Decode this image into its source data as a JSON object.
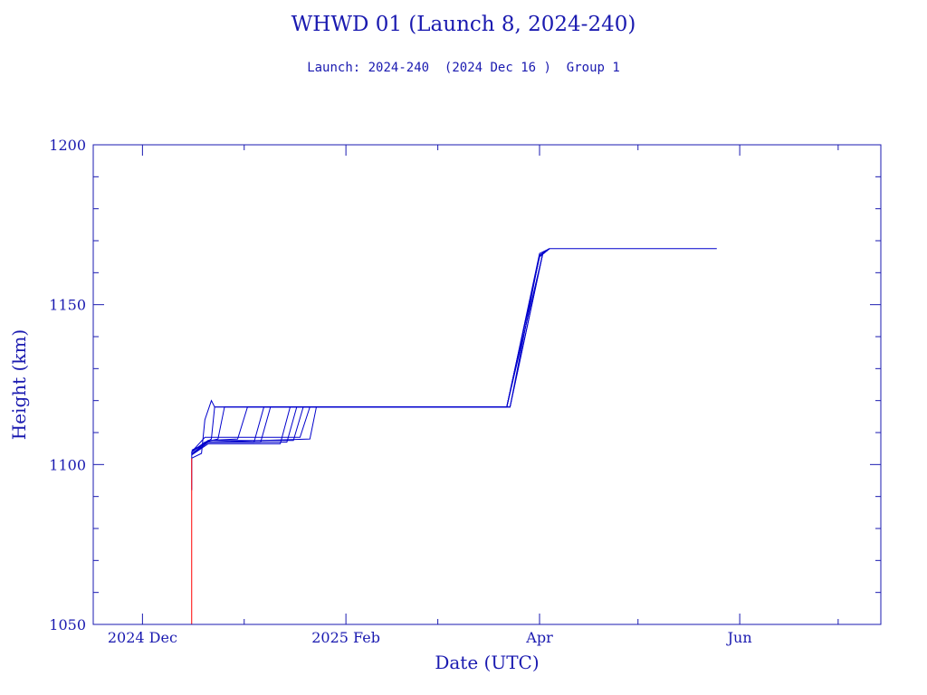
{
  "chart_data": {
    "type": "line",
    "title": "WHWD 01 (Launch 8, 2024-240)",
    "subtitle": "Launch: 2024-240  (2024 Dec 16 )  Group 1",
    "xlabel": "Date (UTC)",
    "ylabel": "Height (km)",
    "xlim": [
      "2024-11-16",
      "2025-07-14"
    ],
    "ylim": [
      1050,
      1200
    ],
    "y_ticks": [
      1050,
      1100,
      1150,
      1200
    ],
    "x_ticks": [
      {
        "date": "2024-12-01",
        "label": "2024 Dec"
      },
      {
        "date": "2025-02-01",
        "label": "2025 Feb"
      },
      {
        "date": "2025-04-01",
        "label": "Apr"
      },
      {
        "date": "2025-06-01",
        "label": "Jun"
      }
    ],
    "grid": false,
    "colors": {
      "axis": "#1a1ab0",
      "series": "#0000cc",
      "launch_marker": "#ff0000"
    },
    "launch_marker": {
      "date": "2024-12-16",
      "from": 1050,
      "to": 1102
    },
    "series": [
      {
        "points": [
          [
            "2024-12-16",
            1092
          ],
          [
            "2024-12-16",
            1104
          ],
          [
            "2024-12-19",
            1106
          ],
          [
            "2024-12-22",
            1108
          ],
          [
            "2024-12-23",
            1118
          ],
          [
            "2025-03-22",
            1118
          ],
          [
            "2025-04-01",
            1165
          ],
          [
            "2025-04-04",
            1167.5
          ],
          [
            "2025-05-25",
            1167.5
          ]
        ]
      },
      {
        "points": [
          [
            "2024-12-16",
            1103
          ],
          [
            "2024-12-20",
            1107
          ],
          [
            "2024-12-24",
            1108
          ],
          [
            "2024-12-26",
            1118
          ],
          [
            "2025-02-27",
            1118
          ],
          [
            "2025-03-22",
            1118
          ],
          [
            "2025-04-01",
            1166
          ],
          [
            "2025-04-04",
            1167.5
          ]
        ]
      },
      {
        "points": [
          [
            "2024-12-16",
            1104
          ],
          [
            "2024-12-21",
            1107.5
          ],
          [
            "2024-12-30",
            1108
          ],
          [
            "2025-01-02",
            1118
          ],
          [
            "2025-03-22",
            1118
          ],
          [
            "2025-04-01",
            1165.5
          ],
          [
            "2025-04-04",
            1167.5
          ]
        ]
      },
      {
        "points": [
          [
            "2024-12-16",
            1103
          ],
          [
            "2024-12-21",
            1107
          ],
          [
            "2025-01-04",
            1107
          ],
          [
            "2025-01-07",
            1118
          ],
          [
            "2025-03-23",
            1118
          ],
          [
            "2025-04-02",
            1166
          ],
          [
            "2025-04-04",
            1167.5
          ]
        ]
      },
      {
        "points": [
          [
            "2024-12-16",
            1104
          ],
          [
            "2024-12-20",
            1107
          ],
          [
            "2025-01-06",
            1107
          ],
          [
            "2025-01-09",
            1118
          ],
          [
            "2025-03-22",
            1118
          ],
          [
            "2025-04-01",
            1165
          ],
          [
            "2025-04-04",
            1167.5
          ]
        ]
      },
      {
        "points": [
          [
            "2024-12-16",
            1103
          ],
          [
            "2024-12-21",
            1106.5
          ],
          [
            "2025-01-12",
            1106.5
          ],
          [
            "2025-01-15",
            1118
          ],
          [
            "2025-03-23",
            1118
          ],
          [
            "2025-04-02",
            1166
          ],
          [
            "2025-04-04",
            1167.5
          ]
        ]
      },
      {
        "points": [
          [
            "2024-12-16",
            1103.5
          ],
          [
            "2024-12-21",
            1107
          ],
          [
            "2025-01-14",
            1107
          ],
          [
            "2025-01-17",
            1118
          ],
          [
            "2025-03-22",
            1118
          ],
          [
            "2025-04-01",
            1165
          ],
          [
            "2025-04-04",
            1167.5
          ]
        ]
      },
      {
        "points": [
          [
            "2024-12-16",
            1104
          ],
          [
            "2024-12-21",
            1107.5
          ],
          [
            "2025-01-16",
            1107.5
          ],
          [
            "2025-01-19",
            1118
          ],
          [
            "2025-03-22",
            1118
          ],
          [
            "2025-04-02",
            1166
          ],
          [
            "2025-04-04",
            1167.5
          ]
        ]
      },
      {
        "points": [
          [
            "2024-12-16",
            1104
          ],
          [
            "2024-12-20",
            1108.5
          ],
          [
            "2025-01-18",
            1108.5
          ],
          [
            "2025-01-21",
            1118
          ],
          [
            "2025-03-23",
            1118
          ],
          [
            "2025-04-01",
            1165.5
          ],
          [
            "2025-04-04",
            1167.5
          ]
        ]
      },
      {
        "points": [
          [
            "2024-12-16",
            1104.5
          ],
          [
            "2024-12-21",
            1107
          ],
          [
            "2025-01-21",
            1108
          ],
          [
            "2025-01-23",
            1118
          ],
          [
            "2025-03-22",
            1118
          ],
          [
            "2025-04-01",
            1165
          ],
          [
            "2025-04-04",
            1167.5
          ]
        ]
      },
      {
        "points": [
          [
            "2024-12-16",
            1102
          ],
          [
            "2024-12-19",
            1103.5
          ],
          [
            "2024-12-20",
            1114
          ],
          [
            "2024-12-22",
            1120
          ],
          [
            "2024-12-23",
            1118
          ],
          [
            "2025-03-22",
            1118
          ],
          [
            "2025-04-01",
            1165
          ],
          [
            "2025-04-04",
            1167.5
          ]
        ]
      }
    ]
  }
}
